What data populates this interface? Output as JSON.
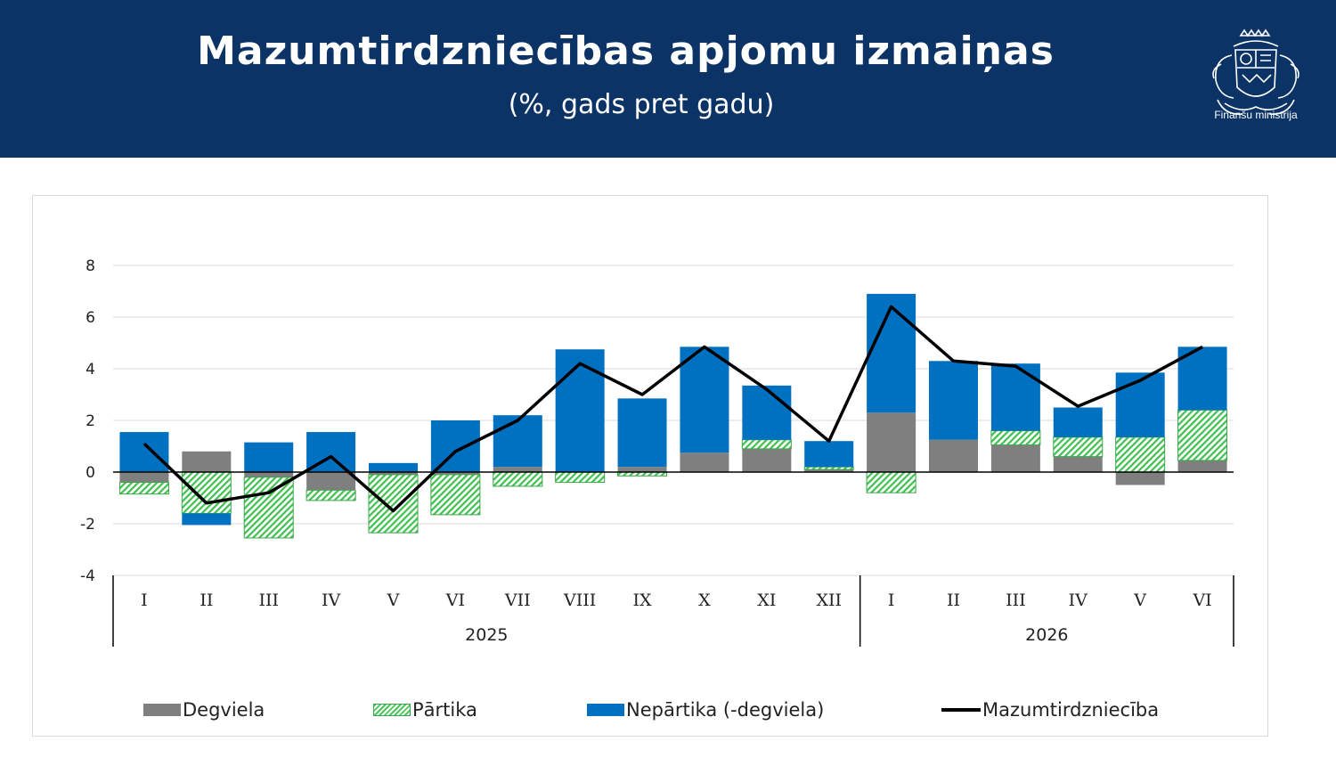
{
  "header": {
    "title": "Mazumtirdzniecības apjomu izmaiņas",
    "subtitle": "(%, gads pret gadu)",
    "logo_text": "Finanšu ministrija"
  },
  "colors": {
    "header_bg": "#0c3366",
    "degviela": "#7f7f7f",
    "partika": "#4cc55a",
    "nepartika": "#0070c0",
    "line": "#000000"
  },
  "chart_data": {
    "type": "bar",
    "stacked": true,
    "ylim": [
      -4,
      8
    ],
    "yticks": [
      "8",
      "6",
      "4",
      "2",
      "0",
      "-2",
      "-4"
    ],
    "categories": [
      "I",
      "II",
      "III",
      "IV",
      "V",
      "VI",
      "VII",
      "VIII",
      "IX",
      "X",
      "XI",
      "XII",
      "I",
      "II",
      "III",
      "IV",
      "V",
      "VI"
    ],
    "groups": [
      {
        "label": "2025",
        "count": 12
      },
      {
        "label": "2026",
        "count": 6
      }
    ],
    "grid": true,
    "legend_position": "bottom",
    "series": [
      {
        "name": "Degviela",
        "kind": "bar",
        "values": [
          -0.4,
          0.8,
          -0.2,
          -0.7,
          -0.1,
          -0.1,
          0.2,
          0.0,
          0.2,
          0.75,
          0.9,
          0.1,
          2.3,
          1.25,
          1.05,
          0.6,
          -0.5,
          0.45
        ]
      },
      {
        "name": "Pārtika",
        "kind": "bar",
        "values": [
          -0.45,
          -1.6,
          -2.35,
          -0.4,
          -2.25,
          -1.55,
          -0.55,
          -0.4,
          -0.15,
          0.0,
          0.35,
          0.1,
          -0.8,
          0.0,
          0.55,
          0.75,
          1.35,
          1.95
        ]
      },
      {
        "name": "Nepārtika (-degviela)",
        "kind": "bar",
        "values": [
          1.55,
          -0.45,
          1.15,
          1.55,
          0.35,
          2.0,
          2.0,
          4.75,
          2.65,
          4.1,
          2.1,
          1.0,
          4.6,
          3.05,
          2.6,
          1.15,
          2.5,
          2.45
        ]
      },
      {
        "name": "Mazumtirdzniecība",
        "kind": "line",
        "values": [
          1.1,
          -1.2,
          -0.8,
          0.6,
          -1.5,
          0.8,
          2.0,
          4.2,
          3.0,
          4.85,
          3.2,
          1.2,
          6.4,
          4.3,
          4.1,
          2.55,
          3.55,
          4.85
        ]
      }
    ]
  }
}
